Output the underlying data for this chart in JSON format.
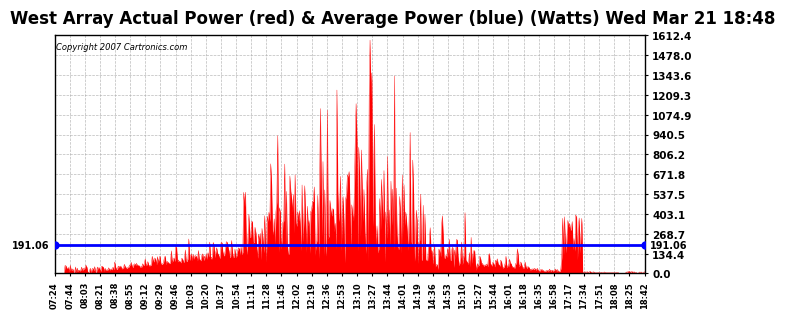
{
  "title": "West Array Actual Power (red) & Average Power (blue) (Watts) Wed Mar 21 18:48",
  "copyright": "Copyright 2007 Cartronics.com",
  "average_value": 191.06,
  "ymin": 0.0,
  "ymax": 1612.4,
  "yticks": [
    0.0,
    134.4,
    268.7,
    403.1,
    537.5,
    671.8,
    806.2,
    940.5,
    1074.9,
    1209.3,
    1343.6,
    1478.0,
    1612.4
  ],
  "xtick_labels": [
    "07:24",
    "07:44",
    "08:03",
    "08:21",
    "08:38",
    "08:55",
    "09:12",
    "09:29",
    "09:46",
    "10:03",
    "10:20",
    "10:37",
    "10:54",
    "11:11",
    "11:28",
    "11:45",
    "12:02",
    "12:19",
    "12:36",
    "12:53",
    "13:10",
    "13:27",
    "13:44",
    "14:01",
    "14:19",
    "14:36",
    "14:53",
    "15:10",
    "15:27",
    "15:44",
    "16:01",
    "16:18",
    "16:35",
    "16:58",
    "17:17",
    "17:34",
    "17:51",
    "18:08",
    "18:25",
    "18:42"
  ],
  "background_color": "#ffffff",
  "grid_color": "#aaaaaa",
  "line_color_avg": "#0000ff",
  "fill_color": "#ff0000",
  "title_fontsize": 12,
  "avg_label": "191.06"
}
